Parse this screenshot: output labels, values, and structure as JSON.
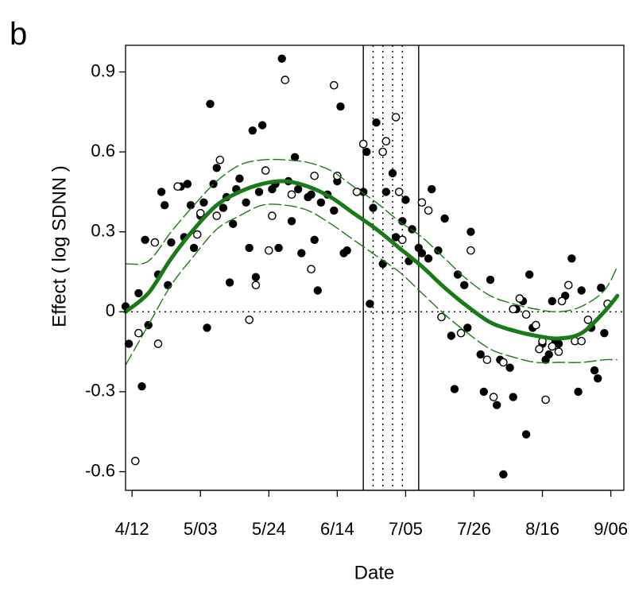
{
  "panel_label": "b",
  "chart_data": {
    "type": "scatter",
    "title": "",
    "xlabel": "Date",
    "ylabel": "Effect ( log SDNN )",
    "x_tick_labels": [
      "4/12",
      "5/03",
      "5/24",
      "6/14",
      "7/05",
      "7/26",
      "8/16",
      "9/06"
    ],
    "y_tick_labels": [
      "-0.6",
      "-0.3",
      "0",
      "0.3",
      "0.6",
      "0.9"
    ],
    "y_ticks": [
      -0.6,
      -0.3,
      0,
      0.3,
      0.6,
      0.9
    ],
    "xlim": [
      "4/10",
      "9/10"
    ],
    "ylim": [
      -0.67,
      1.0
    ],
    "grid": false,
    "reference_line_y": 0,
    "vertical_solid_lines": [
      "6/22",
      "7/09"
    ],
    "vertical_dotted_lines": [
      "6/25",
      "6/28",
      "7/01",
      "7/04"
    ],
    "curve_color": "#1a7a1a",
    "series": [
      {
        "marker": "filled",
        "color": "#000000",
        "points": [
          [
            "4/10",
            0.02
          ],
          [
            "4/11",
            -0.12
          ],
          [
            "4/14",
            0.07
          ],
          [
            "4/15",
            -0.28
          ],
          [
            "4/16",
            0.27
          ],
          [
            "4/17",
            -0.05
          ],
          [
            "4/20",
            0.14
          ],
          [
            "4/21",
            0.45
          ],
          [
            "4/22",
            0.4
          ],
          [
            "4/23",
            0.1
          ],
          [
            "4/24",
            0.26
          ],
          [
            "4/27",
            0.47
          ],
          [
            "4/28",
            0.28
          ],
          [
            "4/29",
            0.48
          ],
          [
            "4/30",
            0.4
          ],
          [
            "5/01",
            0.24
          ],
          [
            "5/03",
            0.36
          ],
          [
            "5/04",
            0.41
          ],
          [
            "5/05",
            -0.06
          ],
          [
            "5/06",
            0.78
          ],
          [
            "5/07",
            0.48
          ],
          [
            "5/08",
            0.54
          ],
          [
            "5/10",
            0.39
          ],
          [
            "5/11",
            0.43
          ],
          [
            "5/12",
            0.11
          ],
          [
            "5/13",
            0.33
          ],
          [
            "5/14",
            0.46
          ],
          [
            "5/15",
            0.5
          ],
          [
            "5/17",
            0.41
          ],
          [
            "5/18",
            0.24
          ],
          [
            "5/19",
            0.68
          ],
          [
            "5/20",
            0.13
          ],
          [
            "5/21",
            0.45
          ],
          [
            "5/22",
            0.7
          ],
          [
            "5/25",
            0.46
          ],
          [
            "5/26",
            0.48
          ],
          [
            "5/27",
            0.24
          ],
          [
            "5/28",
            0.95
          ],
          [
            "5/30",
            0.49
          ],
          [
            "5/31",
            0.34
          ],
          [
            "6/01",
            0.58
          ],
          [
            "6/02",
            0.46
          ],
          [
            "6/03",
            0.22
          ],
          [
            "6/05",
            0.43
          ],
          [
            "6/06",
            0.44
          ],
          [
            "6/07",
            0.27
          ],
          [
            "6/08",
            0.08
          ],
          [
            "6/09",
            0.41
          ],
          [
            "6/11",
            0.44
          ],
          [
            "6/13",
            0.38
          ],
          [
            "6/14",
            0.49
          ],
          [
            "6/15",
            0.77
          ],
          [
            "6/16",
            0.22
          ],
          [
            "6/17",
            0.23
          ],
          [
            "6/22",
            0.45
          ],
          [
            "6/23",
            0.6
          ],
          [
            "6/24",
            0.03
          ],
          [
            "6/25",
            0.39
          ],
          [
            "6/26",
            0.71
          ],
          [
            "6/28",
            0.18
          ],
          [
            "6/29",
            0.45
          ],
          [
            "7/01",
            0.52
          ],
          [
            "7/02",
            0.28
          ],
          [
            "7/04",
            0.34
          ],
          [
            "7/05",
            0.42
          ],
          [
            "7/06",
            0.19
          ],
          [
            "7/07",
            0.31
          ],
          [
            "7/09",
            0.24
          ],
          [
            "7/10",
            0.22
          ],
          [
            "7/12",
            0.2
          ],
          [
            "7/13",
            0.46
          ],
          [
            "7/15",
            0.23
          ],
          [
            "7/17",
            0.35
          ],
          [
            "7/19",
            -0.09
          ],
          [
            "7/20",
            -0.29
          ],
          [
            "7/21",
            0.14
          ],
          [
            "7/23",
            0.1
          ],
          [
            "7/24",
            -0.06
          ],
          [
            "7/25",
            0.3
          ],
          [
            "7/28",
            -0.16
          ],
          [
            "7/29",
            -0.3
          ],
          [
            "7/31",
            0.12
          ],
          [
            "8/02",
            -0.35
          ],
          [
            "8/03",
            -0.18
          ],
          [
            "8/04",
            -0.61
          ],
          [
            "8/06",
            -0.21
          ],
          [
            "8/07",
            -0.32
          ],
          [
            "8/08",
            0.01
          ],
          [
            "8/10",
            0.04
          ],
          [
            "8/11",
            -0.46
          ],
          [
            "8/12",
            0.14
          ],
          [
            "8/13",
            -0.06
          ],
          [
            "8/16",
            -0.12
          ],
          [
            "8/17",
            -0.18
          ],
          [
            "8/18",
            -0.16
          ],
          [
            "8/19",
            0.04
          ],
          [
            "8/20",
            -0.11
          ],
          [
            "8/21",
            -0.12
          ],
          [
            "8/23",
            0.06
          ],
          [
            "8/25",
            0.2
          ],
          [
            "8/27",
            -0.3
          ],
          [
            "8/28",
            0.08
          ],
          [
            "8/31",
            -0.06
          ],
          [
            "9/01",
            -0.22
          ],
          [
            "9/02",
            -0.25
          ],
          [
            "9/03",
            0.09
          ],
          [
            "9/04",
            -0.08
          ]
        ]
      },
      {
        "marker": "open",
        "color": "#000000",
        "points": [
          [
            "4/13",
            -0.56
          ],
          [
            "4/14",
            -0.08
          ],
          [
            "4/19",
            0.26
          ],
          [
            "4/20",
            -0.12
          ],
          [
            "4/26",
            0.47
          ],
          [
            "5/02",
            0.29
          ],
          [
            "5/03",
            0.37
          ],
          [
            "5/08",
            0.36
          ],
          [
            "5/09",
            0.57
          ],
          [
            "5/18",
            -0.03
          ],
          [
            "5/20",
            0.1
          ],
          [
            "5/23",
            0.53
          ],
          [
            "5/24",
            0.23
          ],
          [
            "5/25",
            0.36
          ],
          [
            "5/29",
            0.87
          ],
          [
            "5/31",
            0.44
          ],
          [
            "6/06",
            0.16
          ],
          [
            "6/07",
            0.51
          ],
          [
            "6/13",
            0.85
          ],
          [
            "6/14",
            0.51
          ],
          [
            "6/20",
            0.45
          ],
          [
            "6/22",
            0.63
          ],
          [
            "6/28",
            0.6
          ],
          [
            "6/29",
            0.64
          ],
          [
            "7/02",
            0.73
          ],
          [
            "7/03",
            0.45
          ],
          [
            "7/04",
            0.27
          ],
          [
            "7/10",
            0.41
          ],
          [
            "7/12",
            0.38
          ],
          [
            "7/16",
            -0.02
          ],
          [
            "7/22",
            -0.08
          ],
          [
            "7/25",
            0.23
          ],
          [
            "7/30",
            -0.18
          ],
          [
            "8/01",
            -0.32
          ],
          [
            "8/04",
            -0.19
          ],
          [
            "8/07",
            0.01
          ],
          [
            "8/09",
            0.05
          ],
          [
            "8/11",
            -0.01
          ],
          [
            "8/14",
            -0.05
          ],
          [
            "8/15",
            -0.14
          ],
          [
            "8/16",
            -0.11
          ],
          [
            "8/17",
            -0.33
          ],
          [
            "8/19",
            -0.13
          ],
          [
            "8/21",
            -0.15
          ],
          [
            "8/22",
            0.04
          ],
          [
            "8/24",
            0.1
          ],
          [
            "8/26",
            -0.11
          ],
          [
            "8/28",
            -0.11
          ],
          [
            "8/30",
            -0.03
          ],
          [
            "9/05",
            0.03
          ]
        ]
      }
    ],
    "fit_curve": [
      [
        "4/10",
        0.0
      ],
      [
        "4/17",
        0.07
      ],
      [
        "4/24",
        0.2
      ],
      [
        "5/01",
        0.31
      ],
      [
        "5/08",
        0.4
      ],
      [
        "5/15",
        0.45
      ],
      [
        "5/22",
        0.48
      ],
      [
        "5/29",
        0.49
      ],
      [
        "6/05",
        0.47
      ],
      [
        "6/12",
        0.43
      ],
      [
        "6/19",
        0.37
      ],
      [
        "6/26",
        0.31
      ],
      [
        "7/03",
        0.24
      ],
      [
        "7/10",
        0.17
      ],
      [
        "7/17",
        0.09
      ],
      [
        "7/24",
        0.02
      ],
      [
        "7/31",
        -0.04
      ],
      [
        "8/07",
        -0.07
      ],
      [
        "8/14",
        -0.09
      ],
      [
        "8/21",
        -0.1
      ],
      [
        "8/28",
        -0.08
      ],
      [
        "9/04",
        0.0
      ],
      [
        "9/08",
        0.06
      ]
    ],
    "ci_upper": [
      [
        "4/10",
        0.18
      ],
      [
        "4/17",
        0.19
      ],
      [
        "4/24",
        0.3
      ],
      [
        "5/01",
        0.4
      ],
      [
        "5/08",
        0.49
      ],
      [
        "5/15",
        0.55
      ],
      [
        "5/22",
        0.57
      ],
      [
        "5/29",
        0.57
      ],
      [
        "6/05",
        0.56
      ],
      [
        "6/12",
        0.53
      ],
      [
        "6/19",
        0.47
      ],
      [
        "6/26",
        0.41
      ],
      [
        "7/03",
        0.34
      ],
      [
        "7/10",
        0.28
      ],
      [
        "7/17",
        0.2
      ],
      [
        "7/24",
        0.12
      ],
      [
        "7/31",
        0.06
      ],
      [
        "8/07",
        0.03
      ],
      [
        "8/14",
        0.01
      ],
      [
        "8/21",
        0.0
      ],
      [
        "8/28",
        0.02
      ],
      [
        "9/04",
        0.08
      ],
      [
        "9/08",
        0.17
      ]
    ],
    "ci_lower": [
      [
        "4/10",
        -0.2
      ],
      [
        "4/17",
        -0.05
      ],
      [
        "4/24",
        0.1
      ],
      [
        "5/01",
        0.21
      ],
      [
        "5/08",
        0.31
      ],
      [
        "5/15",
        0.36
      ],
      [
        "5/22",
        0.4
      ],
      [
        "5/29",
        0.4
      ],
      [
        "6/05",
        0.38
      ],
      [
        "6/12",
        0.33
      ],
      [
        "6/19",
        0.27
      ],
      [
        "6/26",
        0.21
      ],
      [
        "7/03",
        0.15
      ],
      [
        "7/10",
        0.07
      ],
      [
        "7/17",
        -0.01
      ],
      [
        "7/24",
        -0.08
      ],
      [
        "7/31",
        -0.14
      ],
      [
        "8/07",
        -0.17
      ],
      [
        "8/14",
        -0.19
      ],
      [
        "8/21",
        -0.19
      ],
      [
        "8/28",
        -0.19
      ],
      [
        "9/04",
        -0.18
      ],
      [
        "9/08",
        -0.18
      ]
    ]
  }
}
